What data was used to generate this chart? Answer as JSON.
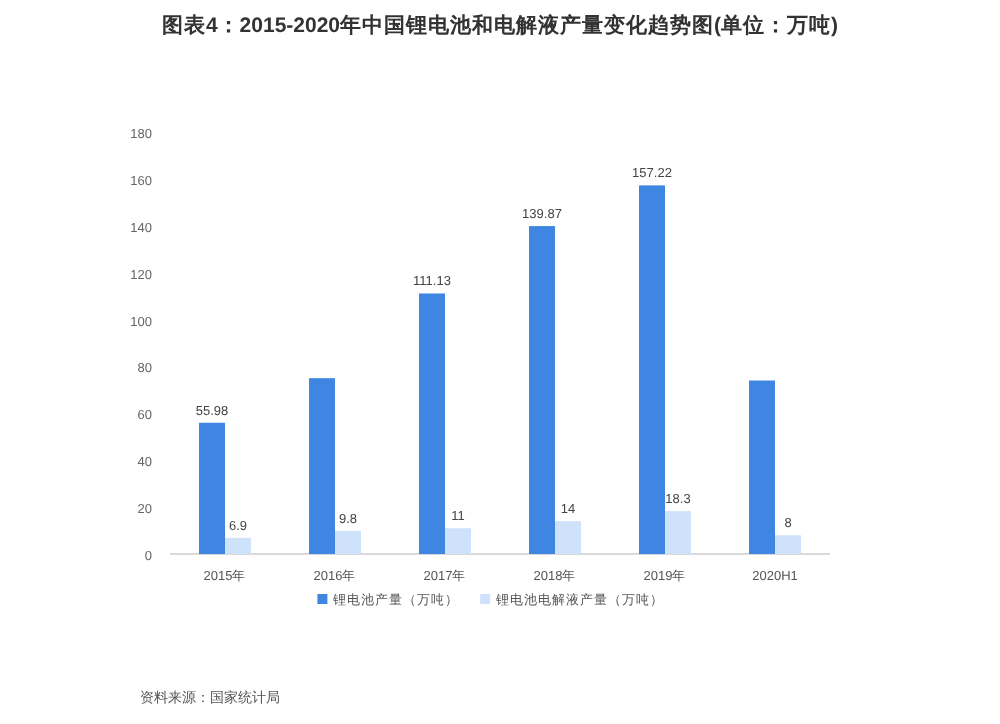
{
  "chart_data": {
    "type": "bar",
    "title": "图表4：2015-2020年中国锂电池和电解液产量变化趋势图(单位：万吨)",
    "categories": [
      "2015年",
      "2016年",
      "2017年",
      "2018年",
      "2019年",
      "2020H1"
    ],
    "series": [
      {
        "name": "锂电池产量（万吨）",
        "color": "#3f86e3",
        "values": [
          55.98,
          75,
          111.13,
          139.87,
          157.22,
          74
        ],
        "value_labels": [
          "55.98",
          null,
          "111.13",
          "139.87",
          "157.22",
          null
        ]
      },
      {
        "name": "锂电池电解液产量（万吨）",
        "color": "#cfe2fb",
        "values": [
          6.9,
          9.8,
          11,
          14,
          18.3,
          8
        ],
        "value_labels": [
          "6.9",
          "9.8",
          "11",
          "14",
          "18.3",
          "8"
        ]
      }
    ],
    "ylim": [
      0,
      180
    ],
    "yticks": [
      0,
      20,
      40,
      60,
      80,
      100,
      120,
      140,
      160,
      180
    ],
    "legend": "bottom",
    "annotations": [
      "资料来源：国家统计局"
    ]
  }
}
